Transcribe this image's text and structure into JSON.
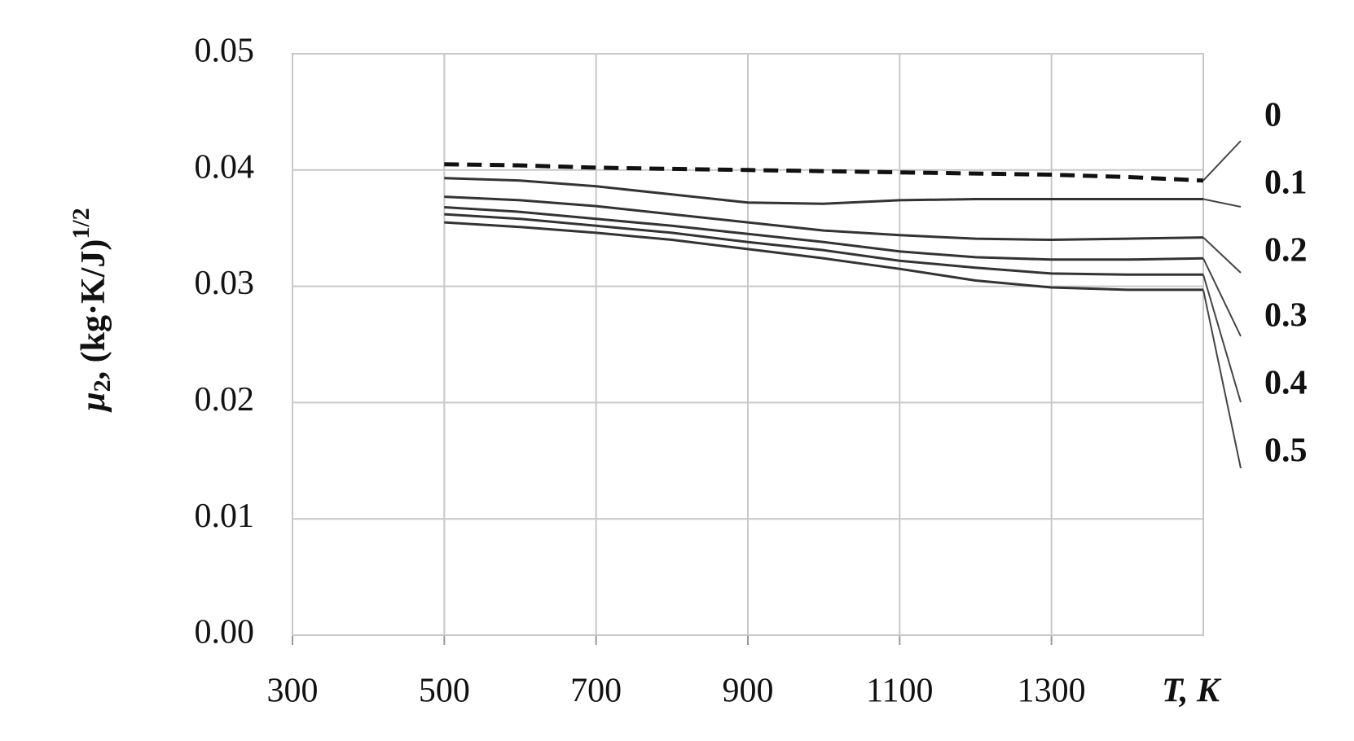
{
  "chart_data": {
    "type": "line",
    "y_label": {
      "symbol": "μ",
      "subscript": "2",
      "unit": ", (kg·K/J)",
      "superscript": "1/2"
    },
    "x_label": "T, K",
    "x": [
      500,
      600,
      700,
      800,
      900,
      1000,
      1100,
      1200,
      1300,
      1400,
      1500
    ],
    "series": [
      {
        "name": "0",
        "color": "#111111",
        "dashed": true,
        "values": [
          0.0405,
          0.0404,
          0.0402,
          0.0401,
          0.04,
          0.0399,
          0.0398,
          0.0397,
          0.0396,
          0.0394,
          0.0391
        ]
      },
      {
        "name": "0.1",
        "color": "#333333",
        "values": [
          0.0393,
          0.0391,
          0.0386,
          0.0379,
          0.0372,
          0.0371,
          0.0374,
          0.0375,
          0.0375,
          0.0375,
          0.0375
        ]
      },
      {
        "name": "0.2",
        "color": "#333333",
        "values": [
          0.0377,
          0.0374,
          0.0369,
          0.0362,
          0.0355,
          0.0348,
          0.0344,
          0.0341,
          0.034,
          0.0341,
          0.0342
        ]
      },
      {
        "name": "0.3",
        "color": "#333333",
        "values": [
          0.0368,
          0.0364,
          0.0358,
          0.0352,
          0.0345,
          0.0338,
          0.033,
          0.0325,
          0.0323,
          0.0323,
          0.0324
        ]
      },
      {
        "name": "0.4",
        "color": "#333333",
        "values": [
          0.0362,
          0.0358,
          0.0352,
          0.0346,
          0.0338,
          0.0331,
          0.0322,
          0.0316,
          0.0311,
          0.031,
          0.031
        ]
      },
      {
        "name": "0.5",
        "color": "#333333",
        "values": [
          0.0355,
          0.0351,
          0.0346,
          0.034,
          0.0332,
          0.0324,
          0.0315,
          0.0305,
          0.0299,
          0.0297,
          0.0297
        ]
      }
    ],
    "xlim": [
      300,
      1500
    ],
    "xticks": [
      300,
      500,
      700,
      900,
      1100,
      1300
    ],
    "ylim": [
      0,
      0.05
    ],
    "yticks": [
      {
        "value": 0,
        "label": "0.00"
      },
      0.01,
      0.02,
      0.03,
      0.04,
      0.05
    ],
    "grid": true
  }
}
